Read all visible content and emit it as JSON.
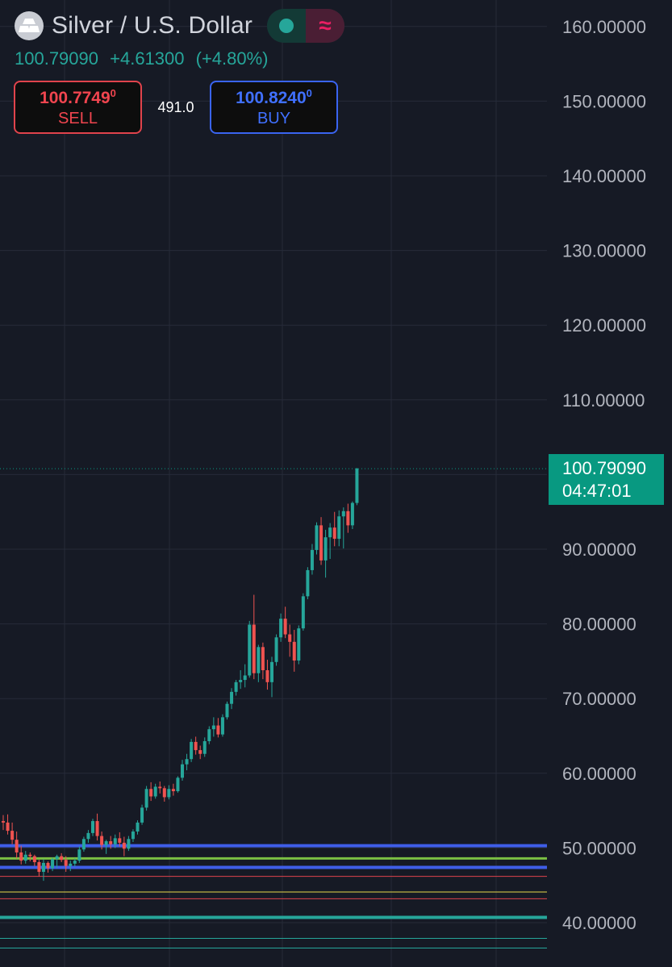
{
  "symbol": {
    "title": "Silver / U.S. Dollar",
    "last_price": "100.79090",
    "change": "+4.61300",
    "change_percent": "(+4.80%)",
    "logo_icon": "silver-bars-icon"
  },
  "trade": {
    "sell_price_main": "100.7749",
    "sell_price_sup": "0",
    "sell_label": "SELL",
    "spread": "491.0",
    "buy_price_main": "100.8240",
    "buy_price_sup": "0",
    "buy_label": "BUY"
  },
  "price_tag": {
    "price": "100.79090",
    "countdown": "04:47:01"
  },
  "colors": {
    "background": "#161a25",
    "grid": "#262b38",
    "up": "#26a69a",
    "down": "#ef5350",
    "price_tag": "#089981",
    "axis_text": "#b2b5be"
  },
  "chart_data": {
    "type": "candlestick",
    "ylim": [
      36.5,
      164
    ],
    "y_ticks": [
      "160.00000",
      "150.00000",
      "140.00000",
      "130.00000",
      "120.00000",
      "110.00000",
      "90.00000",
      "80.00000",
      "70.00000",
      "60.00000",
      "50.00000",
      "40.00000"
    ],
    "y_tick_values": [
      160,
      150,
      140,
      130,
      120,
      110,
      90,
      80,
      70,
      60,
      50,
      40
    ],
    "grid": true,
    "last_price_line": 100.7909,
    "horizontal_lines": [
      {
        "value": 50.3,
        "color": "#3f5ee8",
        "width": 4
      },
      {
        "value": 48.6,
        "color": "#7bc043",
        "width": 3
      },
      {
        "value": 47.4,
        "color": "#3f5ee8",
        "width": 4
      },
      {
        "value": 46.2,
        "color": "#e0434c",
        "width": 1
      },
      {
        "value": 44.1,
        "color": "#e6d84c",
        "width": 1
      },
      {
        "value": 43.2,
        "color": "#e0434c",
        "width": 1
      },
      {
        "value": 40.7,
        "color": "#26a69a",
        "width": 4
      },
      {
        "value": 37.9,
        "color": "#26a69a",
        "width": 1
      },
      {
        "value": 36.6,
        "color": "#26a69a",
        "width": 1
      }
    ],
    "ohlc": [
      [
        53.6,
        54.4,
        52.4,
        53.4
      ],
      [
        53.4,
        54.5,
        51.8,
        52.3
      ],
      [
        52.3,
        53.4,
        50.5,
        51.1
      ],
      [
        51.1,
        52.2,
        48.6,
        49.4
      ],
      [
        49.4,
        50.3,
        47.8,
        48.3
      ],
      [
        48.3,
        49.6,
        47.9,
        49.1
      ],
      [
        49.1,
        49.4,
        48.2,
        48.9
      ],
      [
        48.9,
        49.1,
        47.6,
        48.1
      ],
      [
        48.1,
        48.4,
        46.2,
        46.8
      ],
      [
        46.8,
        48.5,
        45.6,
        48.0
      ],
      [
        48.0,
        48.2,
        46.7,
        47.3
      ],
      [
        47.3,
        48.7,
        46.9,
        48.5
      ],
      [
        48.5,
        49.1,
        47.3,
        48.9
      ],
      [
        48.9,
        49.3,
        48.1,
        48.4
      ],
      [
        48.4,
        48.9,
        46.8,
        47.6
      ],
      [
        47.6,
        48.3,
        46.9,
        47.9
      ],
      [
        47.9,
        48.6,
        47.5,
        48.3
      ],
      [
        48.3,
        50.2,
        48.0,
        49.8
      ],
      [
        49.8,
        51.5,
        49.5,
        51.2
      ],
      [
        51.2,
        52.4,
        50.7,
        52.0
      ],
      [
        52.0,
        53.9,
        51.6,
        53.6
      ],
      [
        53.6,
        54.6,
        51.0,
        51.6
      ],
      [
        51.6,
        52.2,
        49.8,
        50.4
      ],
      [
        50.4,
        51.1,
        49.2,
        50.9
      ],
      [
        50.9,
        51.6,
        49.9,
        50.5
      ],
      [
        50.5,
        51.8,
        50.0,
        51.3
      ],
      [
        51.3,
        52.1,
        50.2,
        50.7
      ],
      [
        50.7,
        51.5,
        48.9,
        49.9
      ],
      [
        49.9,
        51.6,
        49.6,
        51.2
      ],
      [
        51.2,
        52.5,
        50.8,
        52.2
      ],
      [
        52.2,
        53.7,
        51.8,
        53.4
      ],
      [
        53.4,
        55.8,
        53.1,
        55.4
      ],
      [
        55.4,
        58.3,
        55.0,
        57.9
      ],
      [
        57.9,
        58.8,
        56.3,
        56.9
      ],
      [
        56.9,
        58.6,
        56.6,
        58.2
      ],
      [
        58.2,
        58.9,
        57.3,
        58.0
      ],
      [
        58.0,
        58.3,
        56.2,
        56.8
      ],
      [
        56.8,
        58.4,
        56.5,
        57.9
      ],
      [
        57.9,
        58.6,
        57.0,
        57.6
      ],
      [
        57.6,
        59.6,
        57.4,
        59.4
      ],
      [
        59.4,
        61.8,
        59.0,
        61.2
      ],
      [
        61.2,
        62.6,
        60.4,
        61.9
      ],
      [
        61.9,
        64.6,
        61.5,
        64.2
      ],
      [
        64.2,
        64.9,
        62.5,
        63.1
      ],
      [
        63.1,
        63.7,
        61.9,
        62.6
      ],
      [
        62.6,
        64.8,
        62.2,
        64.3
      ],
      [
        64.3,
        66.3,
        63.9,
        65.9
      ],
      [
        65.9,
        67.5,
        64.9,
        66.4
      ],
      [
        66.4,
        67.4,
        64.8,
        65.2
      ],
      [
        65.2,
        67.9,
        64.9,
        67.5
      ],
      [
        67.5,
        69.6,
        67.2,
        69.3
      ],
      [
        69.3,
        71.4,
        68.6,
        70.9
      ],
      [
        70.9,
        72.5,
        70.4,
        72.2
      ],
      [
        72.2,
        73.8,
        71.3,
        72.5
      ],
      [
        72.5,
        74.6,
        71.5,
        73.1
      ],
      [
        73.1,
        80.4,
        72.8,
        79.9
      ],
      [
        79.9,
        83.9,
        72.6,
        73.4
      ],
      [
        73.4,
        77.2,
        72.2,
        76.9
      ],
      [
        76.9,
        77.5,
        72.6,
        73.8
      ],
      [
        73.8,
        75.2,
        71.2,
        72.2
      ],
      [
        72.2,
        75.6,
        70.2,
        74.9
      ],
      [
        74.9,
        78.6,
        74.4,
        78.2
      ],
      [
        78.2,
        81.4,
        77.6,
        80.7
      ],
      [
        80.7,
        82.3,
        78.1,
        78.6
      ],
      [
        78.6,
        79.9,
        75.6,
        77.6
      ],
      [
        77.6,
        79.2,
        73.6,
        75.1
      ],
      [
        75.1,
        79.8,
        74.6,
        79.4
      ],
      [
        79.4,
        84.1,
        79.1,
        83.7
      ],
      [
        83.7,
        87.6,
        83.3,
        87.2
      ],
      [
        87.2,
        90.7,
        86.6,
        89.9
      ],
      [
        89.9,
        93.6,
        89.3,
        93.2
      ],
      [
        93.2,
        94.3,
        87.9,
        88.5
      ],
      [
        88.5,
        92.6,
        86.2,
        91.6
      ],
      [
        91.6,
        93.5,
        88.7,
        92.9
      ],
      [
        92.9,
        95.0,
        90.4,
        91.4
      ],
      [
        91.4,
        95.2,
        90.4,
        94.4
      ],
      [
        94.4,
        95.6,
        90.1,
        95.1
      ],
      [
        95.1,
        96.1,
        92.2,
        93.2
      ],
      [
        93.2,
        96.4,
        92.7,
        96.2
      ],
      [
        96.2,
        100.9,
        95.9,
        100.79
      ]
    ]
  }
}
